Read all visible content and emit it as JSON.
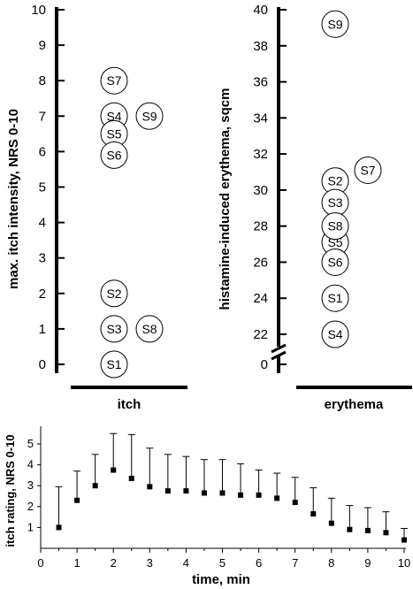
{
  "chart_data": [
    {
      "type": "scatter",
      "ylabel": "max. itch intensity, NRS 0-10",
      "group_label": "itch",
      "ylim": [
        0,
        10
      ],
      "yticks": [
        "0",
        "1",
        "2",
        "3",
        "4",
        "5",
        "6",
        "7",
        "8",
        "9",
        "10"
      ],
      "points": [
        {
          "label": "S1",
          "y": 0
        },
        {
          "label": "S2",
          "y": 2
        },
        {
          "label": "S3",
          "y": 1
        },
        {
          "label": "S4",
          "y": 7
        },
        {
          "label": "S5",
          "y": 6.5
        },
        {
          "label": "S6",
          "y": 5.9
        },
        {
          "label": "S7",
          "y": 8
        },
        {
          "label": "S8",
          "y": 1
        },
        {
          "label": "S9",
          "y": 7
        }
      ]
    },
    {
      "type": "scatter",
      "ylabel": "histamine-induced erythema, sqcm",
      "group_label": "erythema",
      "ylim": [
        20,
        40
      ],
      "axis_break": true,
      "yticks": [
        "0",
        "22",
        "24",
        "26",
        "28",
        "30",
        "32",
        "34",
        "36",
        "38",
        "40"
      ],
      "points": [
        {
          "label": "S1",
          "y": 24
        },
        {
          "label": "S2",
          "y": 30.5
        },
        {
          "label": "S3",
          "y": 29.3
        },
        {
          "label": "S4",
          "y": 22
        },
        {
          "label": "S5",
          "y": 27.1
        },
        {
          "label": "S6",
          "y": 26
        },
        {
          "label": "S7",
          "y": 31.1
        },
        {
          "label": "S8",
          "y": 28
        },
        {
          "label": "S9",
          "y": 39.2
        }
      ]
    },
    {
      "type": "line",
      "ylabel": "itch rating, NRS 0-10",
      "xlabel": "time, min",
      "xlim": [
        0,
        10
      ],
      "ylim": [
        0,
        5.5
      ],
      "xticks": [
        "0",
        "1",
        "2",
        "3",
        "4",
        "5",
        "6",
        "7",
        "8",
        "9",
        "10"
      ],
      "yticks": [
        "1",
        "2",
        "3",
        "4",
        "5"
      ],
      "x": [
        0.5,
        1,
        1.5,
        2,
        2.5,
        3,
        3.5,
        4,
        4.5,
        5,
        5.5,
        6,
        6.5,
        7,
        7.5,
        8,
        8.5,
        9,
        9.5,
        10
      ],
      "values": [
        1.0,
        2.3,
        3.0,
        3.75,
        3.35,
        2.95,
        2.75,
        2.75,
        2.65,
        2.65,
        2.55,
        2.55,
        2.4,
        2.2,
        1.65,
        1.2,
        0.9,
        0.85,
        0.75,
        0.4
      ],
      "error_upper": [
        2.95,
        3.7,
        4.5,
        5.5,
        5.45,
        4.8,
        4.5,
        4.4,
        4.25,
        4.25,
        4.05,
        3.75,
        3.6,
        3.4,
        2.9,
        2.4,
        2.05,
        1.95,
        1.75,
        0.95
      ]
    }
  ]
}
